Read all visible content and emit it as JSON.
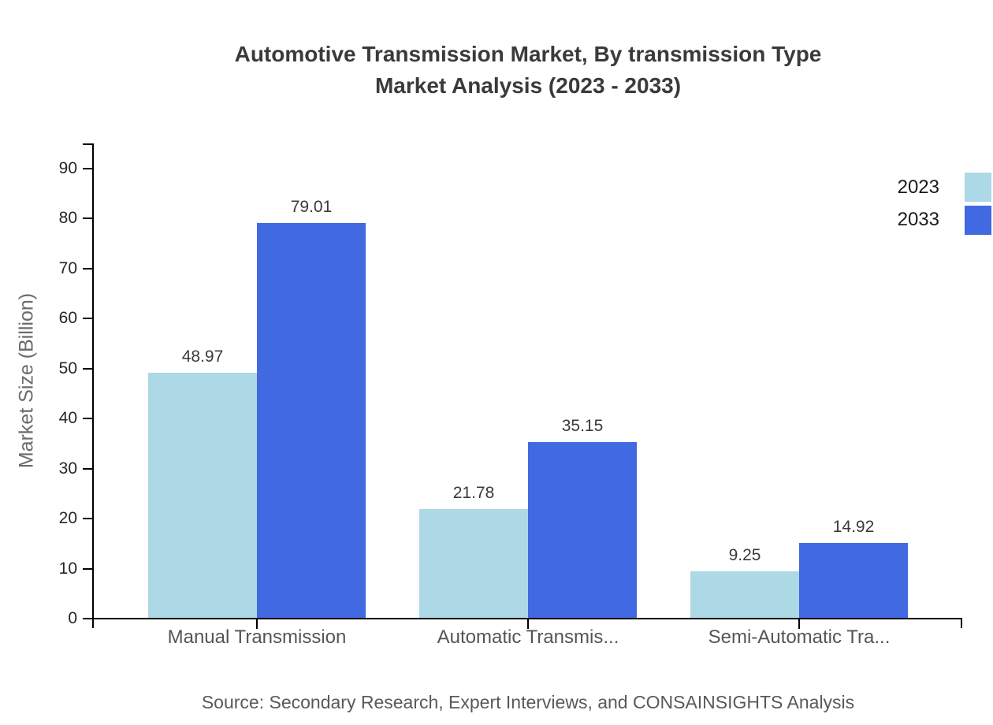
{
  "title": {
    "line1": "Automotive Transmission Market, By transmission Type",
    "line2": "Market Analysis (2023 - 2033)"
  },
  "chart_data": {
    "type": "bar",
    "categories": [
      "Manual Transmission",
      "Automatic Transmis...",
      "Semi-Automatic Tra..."
    ],
    "series": [
      {
        "name": "2023",
        "color": "#add8e6",
        "values": [
          48.97,
          21.78,
          9.25
        ]
      },
      {
        "name": "2033",
        "color": "#4169e1",
        "values": [
          79.01,
          35.15,
          14.92
        ]
      }
    ],
    "title": "Automotive Transmission Market, By transmission Type Market Analysis (2023 - 2033)",
    "xlabel": "",
    "ylabel": "Market Size (Billion)",
    "ylim": [
      0,
      90
    ],
    "yticks": [
      0,
      10,
      20,
      30,
      40,
      50,
      60,
      70,
      80,
      90
    ],
    "grid": false,
    "legend_position": "top-right",
    "value_labels": true
  },
  "source": "Source: Secondary Research, Expert Interviews, and CONSAINSIGHTS Analysis",
  "colors": {
    "series_2023": "#add8e6",
    "series_2033": "#4169e1",
    "axis": "#000000",
    "title_text": "#3a3a3a",
    "tick_label": "#262626",
    "category_label": "#555555",
    "y_axis_label": "#6b6b6b",
    "source_text": "#595959",
    "background": "#ffffff"
  }
}
